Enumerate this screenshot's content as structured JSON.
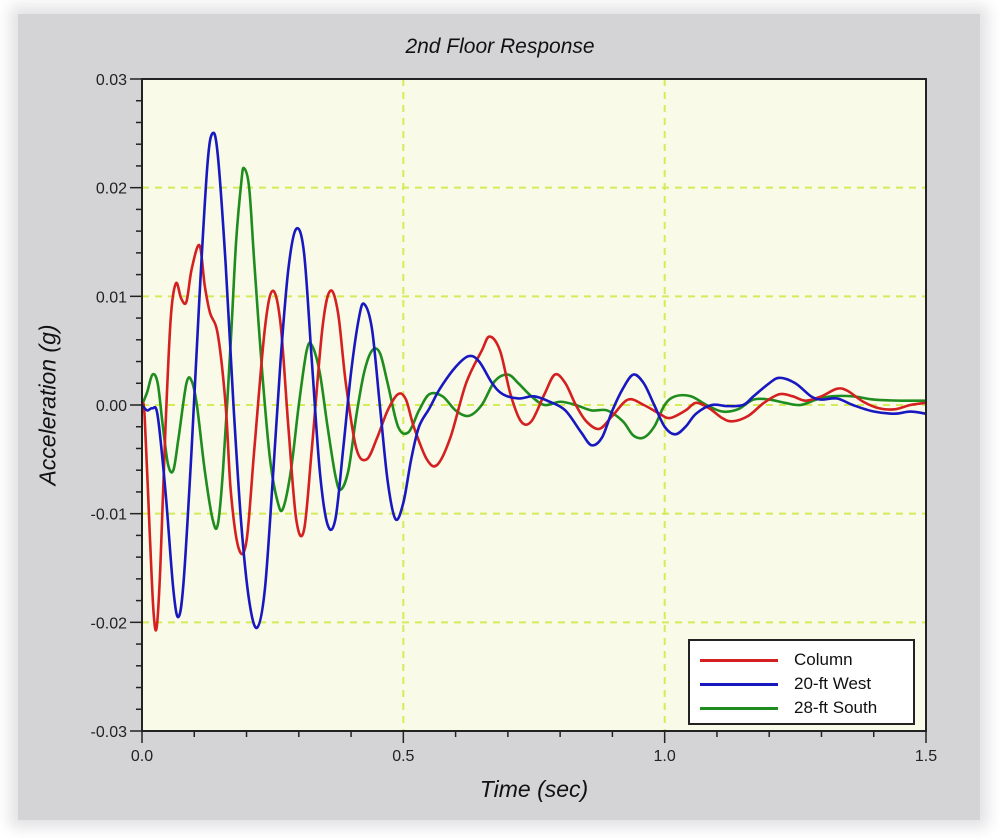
{
  "chart_data": {
    "type": "line",
    "title": "2nd Floor Response",
    "xlabel": "Time (sec)",
    "ylabel": "Acceleration (g)",
    "xlim": [
      0.0,
      1.5
    ],
    "ylim": [
      -0.03,
      0.03
    ],
    "xticks": [
      "0.0",
      "0.5",
      "1.0",
      "1.5"
    ],
    "yticks": [
      "0.03",
      "0.02",
      "0.01",
      "0.00",
      "-0.01",
      "-0.02",
      "-0.03"
    ],
    "grid": true,
    "legend_position": "lower right",
    "background_color": "#fafae8",
    "grid_color": "#d4ec5a",
    "series": [
      {
        "name": "Column",
        "color": "#d42020",
        "points": [
          [
            0.0,
            0.0
          ],
          [
            0.005,
            -0.001
          ],
          [
            0.015,
            -0.012
          ],
          [
            0.022,
            -0.019
          ],
          [
            0.028,
            -0.0205
          ],
          [
            0.035,
            -0.015
          ],
          [
            0.045,
            -0.002
          ],
          [
            0.055,
            0.008
          ],
          [
            0.065,
            0.0112
          ],
          [
            0.075,
            0.0098
          ],
          [
            0.085,
            0.0095
          ],
          [
            0.095,
            0.0125
          ],
          [
            0.11,
            0.0147
          ],
          [
            0.12,
            0.011
          ],
          [
            0.13,
            0.0085
          ],
          [
            0.145,
            0.0065
          ],
          [
            0.16,
            0.0
          ],
          [
            0.17,
            -0.008
          ],
          [
            0.185,
            -0.0132
          ],
          [
            0.2,
            -0.0125
          ],
          [
            0.215,
            -0.004
          ],
          [
            0.235,
            0.007
          ],
          [
            0.25,
            0.0105
          ],
          [
            0.265,
            0.0075
          ],
          [
            0.28,
            -0.002
          ],
          [
            0.295,
            -0.0105
          ],
          [
            0.31,
            -0.0115
          ],
          [
            0.325,
            -0.004
          ],
          [
            0.345,
            0.007
          ],
          [
            0.36,
            0.0105
          ],
          [
            0.375,
            0.0085
          ],
          [
            0.39,
            0.002
          ],
          [
            0.41,
            -0.004
          ],
          [
            0.43,
            -0.005
          ],
          [
            0.45,
            -0.003
          ],
          [
            0.47,
            -0.0005
          ],
          [
            0.49,
            0.001
          ],
          [
            0.505,
            0.0005
          ],
          [
            0.52,
            -0.002
          ],
          [
            0.545,
            -0.005
          ],
          [
            0.565,
            -0.0055
          ],
          [
            0.59,
            -0.003
          ],
          [
            0.62,
            0.002
          ],
          [
            0.65,
            0.005
          ],
          [
            0.665,
            0.0063
          ],
          [
            0.685,
            0.005
          ],
          [
            0.705,
            0.001
          ],
          [
            0.725,
            -0.0015
          ],
          [
            0.745,
            -0.0015
          ],
          [
            0.77,
            0.001
          ],
          [
            0.79,
            0.0028
          ],
          [
            0.81,
            0.002
          ],
          [
            0.83,
            0.0
          ],
          [
            0.85,
            -0.0015
          ],
          [
            0.875,
            -0.0022
          ],
          [
            0.9,
            -0.001
          ],
          [
            0.93,
            0.0005
          ],
          [
            0.96,
            0.0
          ],
          [
            0.99,
            -0.0008
          ],
          [
            1.01,
            -0.0012
          ],
          [
            1.04,
            -0.0005
          ],
          [
            1.06,
            0.0002
          ],
          [
            1.085,
            -0.0003
          ],
          [
            1.11,
            -0.0012
          ],
          [
            1.13,
            -0.0015
          ],
          [
            1.16,
            -0.001
          ],
          [
            1.19,
            0.0002
          ],
          [
            1.22,
            0.001
          ],
          [
            1.245,
            0.0008
          ],
          [
            1.27,
            0.0004
          ],
          [
            1.3,
            0.0008
          ],
          [
            1.33,
            0.0015
          ],
          [
            1.35,
            0.0013
          ],
          [
            1.38,
            0.0003
          ],
          [
            1.41,
            -0.0003
          ],
          [
            1.44,
            -0.0004
          ],
          [
            1.47,
            0.0
          ],
          [
            1.5,
            0.0002
          ]
        ]
      },
      {
        "name": "20-ft West",
        "color": "#1818c0",
        "points": [
          [
            0.0,
            0.0
          ],
          [
            0.01,
            -0.0005
          ],
          [
            0.02,
            -0.0003
          ],
          [
            0.03,
            -0.001
          ],
          [
            0.045,
            -0.008
          ],
          [
            0.06,
            -0.017
          ],
          [
            0.07,
            -0.0195
          ],
          [
            0.08,
            -0.016
          ],
          [
            0.095,
            -0.004
          ],
          [
            0.11,
            0.01
          ],
          [
            0.125,
            0.022
          ],
          [
            0.135,
            0.025
          ],
          [
            0.145,
            0.023
          ],
          [
            0.16,
            0.013
          ],
          [
            0.175,
            0.0
          ],
          [
            0.19,
            -0.011
          ],
          [
            0.205,
            -0.018
          ],
          [
            0.22,
            -0.0205
          ],
          [
            0.235,
            -0.017
          ],
          [
            0.25,
            -0.007
          ],
          [
            0.265,
            0.004
          ],
          [
            0.28,
            0.0125
          ],
          [
            0.295,
            0.0162
          ],
          [
            0.31,
            0.014
          ],
          [
            0.325,
            0.004
          ],
          [
            0.34,
            -0.006
          ],
          [
            0.355,
            -0.011
          ],
          [
            0.37,
            -0.0105
          ],
          [
            0.385,
            -0.004
          ],
          [
            0.4,
            0.003
          ],
          [
            0.415,
            0.008
          ],
          [
            0.425,
            0.0093
          ],
          [
            0.44,
            0.007
          ],
          [
            0.455,
            0.0
          ],
          [
            0.47,
            -0.007
          ],
          [
            0.485,
            -0.0105
          ],
          [
            0.5,
            -0.009
          ],
          [
            0.515,
            -0.005
          ],
          [
            0.53,
            -0.002
          ],
          [
            0.55,
            -0.0003
          ],
          [
            0.57,
            0.0015
          ],
          [
            0.6,
            0.0035
          ],
          [
            0.625,
            0.0045
          ],
          [
            0.645,
            0.004
          ],
          [
            0.67,
            0.002
          ],
          [
            0.69,
            0.001
          ],
          [
            0.72,
            0.0006
          ],
          [
            0.75,
            0.0008
          ],
          [
            0.78,
            0.0003
          ],
          [
            0.81,
            -0.0005
          ],
          [
            0.84,
            -0.0025
          ],
          [
            0.86,
            -0.0037
          ],
          [
            0.88,
            -0.003
          ],
          [
            0.9,
            -0.0005
          ],
          [
            0.92,
            0.0015
          ],
          [
            0.94,
            0.0028
          ],
          [
            0.96,
            0.002
          ],
          [
            0.98,
            0.0
          ],
          [
            1.0,
            -0.002
          ],
          [
            1.02,
            -0.0027
          ],
          [
            1.04,
            -0.002
          ],
          [
            1.06,
            -0.0008
          ],
          [
            1.09,
            0.0
          ],
          [
            1.12,
            -0.0001
          ],
          [
            1.15,
            0.0
          ],
          [
            1.17,
            0.0008
          ],
          [
            1.2,
            0.002
          ],
          [
            1.22,
            0.0025
          ],
          [
            1.25,
            0.002
          ],
          [
            1.28,
            0.0008
          ],
          [
            1.3,
            0.0005
          ],
          [
            1.33,
            0.0006
          ],
          [
            1.36,
            0.0
          ],
          [
            1.4,
            -0.0006
          ],
          [
            1.44,
            -0.0008
          ],
          [
            1.47,
            -0.0006
          ],
          [
            1.5,
            -0.0008
          ]
        ]
      },
      {
        "name": "28-ft South",
        "color": "#1e8c1e",
        "points": [
          [
            0.0,
            0.0
          ],
          [
            0.01,
            0.0012
          ],
          [
            0.02,
            0.0028
          ],
          [
            0.03,
            0.002
          ],
          [
            0.04,
            -0.002
          ],
          [
            0.05,
            -0.0055
          ],
          [
            0.06,
            -0.006
          ],
          [
            0.07,
            -0.003
          ],
          [
            0.085,
            0.002
          ],
          [
            0.095,
            0.0022
          ],
          [
            0.105,
            0.0
          ],
          [
            0.12,
            -0.006
          ],
          [
            0.135,
            -0.0105
          ],
          [
            0.145,
            -0.011
          ],
          [
            0.155,
            -0.006
          ],
          [
            0.17,
            0.006
          ],
          [
            0.18,
            0.015
          ],
          [
            0.19,
            0.0205
          ],
          [
            0.195,
            0.0218
          ],
          [
            0.205,
            0.02
          ],
          [
            0.215,
            0.013
          ],
          [
            0.23,
            0.003
          ],
          [
            0.245,
            -0.005
          ],
          [
            0.26,
            -0.009
          ],
          [
            0.27,
            -0.0095
          ],
          [
            0.285,
            -0.006
          ],
          [
            0.3,
            0.0
          ],
          [
            0.315,
            0.005
          ],
          [
            0.325,
            0.0055
          ],
          [
            0.34,
            0.003
          ],
          [
            0.355,
            -0.002
          ],
          [
            0.37,
            -0.0065
          ],
          [
            0.38,
            -0.0078
          ],
          [
            0.395,
            -0.006
          ],
          [
            0.41,
            -0.001
          ],
          [
            0.425,
            0.003
          ],
          [
            0.44,
            0.005
          ],
          [
            0.455,
            0.0048
          ],
          [
            0.47,
            0.002
          ],
          [
            0.49,
            -0.002
          ],
          [
            0.51,
            -0.0025
          ],
          [
            0.53,
            -0.0005
          ],
          [
            0.55,
            0.001
          ],
          [
            0.575,
            0.0008
          ],
          [
            0.6,
            -0.0005
          ],
          [
            0.625,
            -0.001
          ],
          [
            0.65,
            0.0
          ],
          [
            0.675,
            0.0022
          ],
          [
            0.7,
            0.0028
          ],
          [
            0.72,
            0.002
          ],
          [
            0.745,
            0.0008
          ],
          [
            0.77,
            0.0
          ],
          [
            0.8,
            0.0003
          ],
          [
            0.83,
            0.0
          ],
          [
            0.86,
            -0.0005
          ],
          [
            0.89,
            -0.0005
          ],
          [
            0.92,
            -0.0015
          ],
          [
            0.94,
            -0.0028
          ],
          [
            0.96,
            -0.003
          ],
          [
            0.98,
            -0.002
          ],
          [
            1.0,
            0.0
          ],
          [
            1.02,
            0.0008
          ],
          [
            1.05,
            0.0008
          ],
          [
            1.08,
            0.0
          ],
          [
            1.11,
            -0.0006
          ],
          [
            1.14,
            -0.0004
          ],
          [
            1.17,
            0.0005
          ],
          [
            1.2,
            0.0005
          ],
          [
            1.23,
            0.0002
          ],
          [
            1.26,
            0.0
          ],
          [
            1.29,
            0.0005
          ],
          [
            1.32,
            0.0008
          ],
          [
            1.36,
            0.0008
          ],
          [
            1.4,
            0.0005
          ],
          [
            1.45,
            0.0004
          ],
          [
            1.5,
            0.0004
          ]
        ]
      }
    ]
  },
  "legend": {
    "items": [
      {
        "label": "Column",
        "color": "#d42020"
      },
      {
        "label": "20-ft West",
        "color": "#1818c0"
      },
      {
        "label": "28-ft South",
        "color": "#1e8c1e"
      }
    ]
  }
}
